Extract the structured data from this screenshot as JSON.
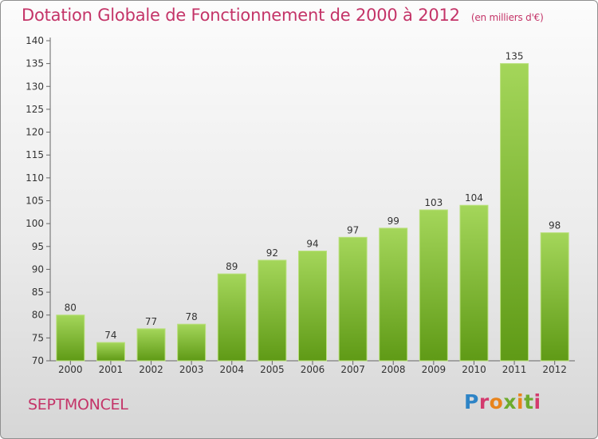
{
  "header": {
    "title": "Dotation Globale de Fonctionnement de 2000 à 2012",
    "subtitle": "(en milliers d'€)"
  },
  "commune": "SEPTMONCEL",
  "logo": {
    "text": "Proxiti"
  },
  "colors": {
    "bar_light": "#a4d65a",
    "bar_dark": "#5f9a16",
    "title": "#c43468"
  },
  "chart_data": {
    "type": "bar",
    "title": "Dotation Globale de Fonctionnement de 2000 à 2012",
    "subtitle": "(en milliers d'€)",
    "categories": [
      "2000",
      "2001",
      "2002",
      "2003",
      "2004",
      "2005",
      "2006",
      "2007",
      "2008",
      "2009",
      "2010",
      "2011",
      "2012"
    ],
    "values": [
      80,
      74,
      77,
      78,
      89,
      92,
      94,
      97,
      99,
      103,
      104,
      135,
      98
    ],
    "ylim": [
      70,
      140
    ],
    "yticks": [
      70,
      75,
      80,
      85,
      90,
      95,
      100,
      105,
      110,
      115,
      120,
      125,
      130,
      135,
      140
    ],
    "grid": false,
    "data_labels": true
  }
}
